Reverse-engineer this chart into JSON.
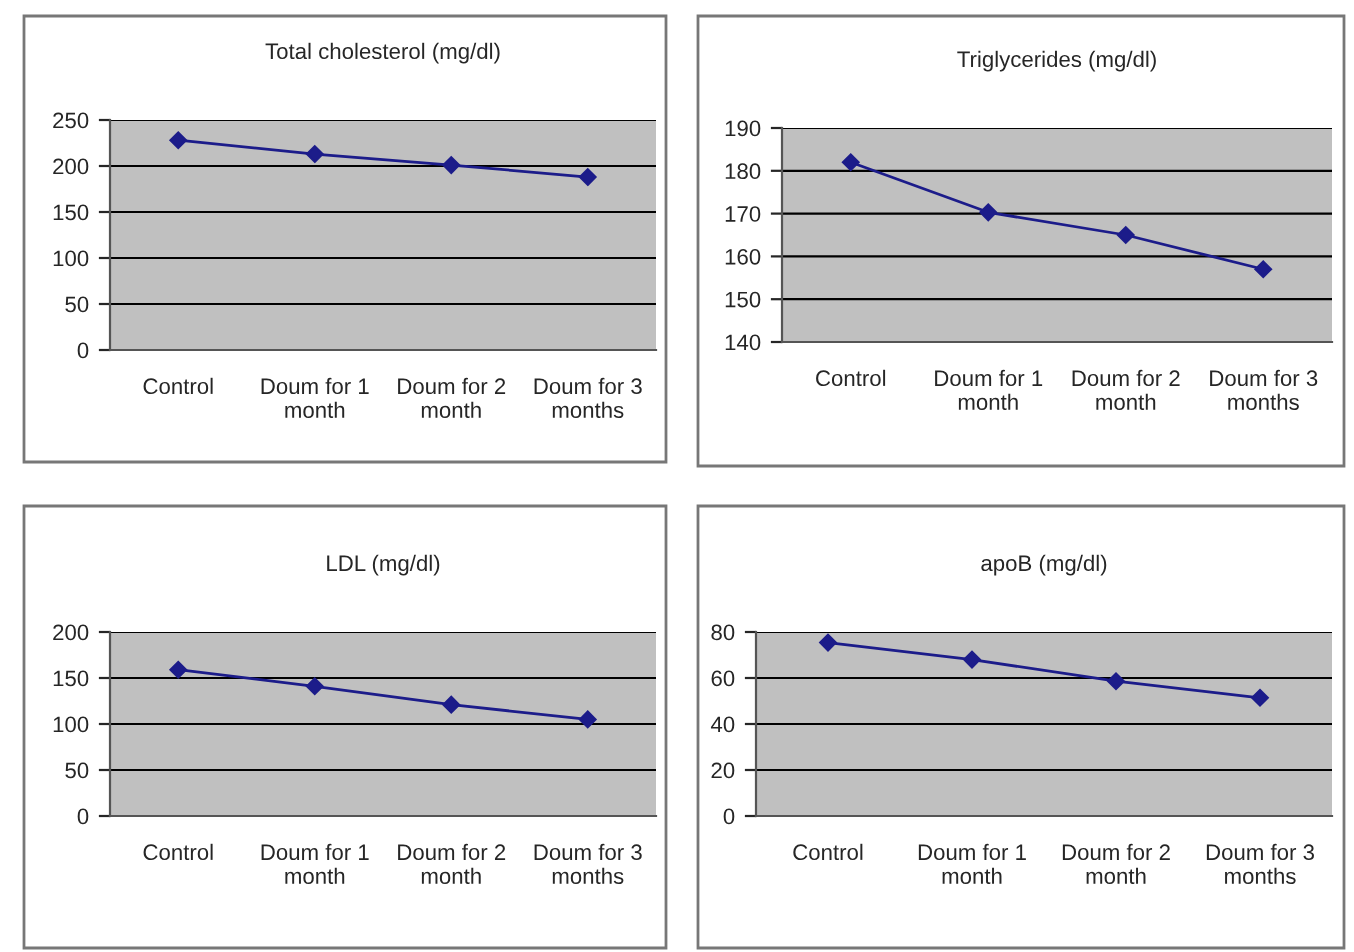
{
  "chart_data": [
    {
      "type": "line",
      "title": "Total cholesterol (mg/dl)",
      "categories": [
        "Control",
        "Doum for 1 month",
        "Doum for 2 month",
        "Doum for 3 months"
      ],
      "series": [
        {
          "color": "#1c1c8a",
          "values": [
            228,
            213,
            201,
            188
          ]
        }
      ],
      "ylim": [
        0,
        250
      ],
      "yticks": [
        0,
        50,
        100,
        150,
        200,
        250
      ],
      "grid": "y",
      "marker": "diamond",
      "line_style": "solid"
    },
    {
      "type": "line",
      "title": "Triglycerides (mg/dl)",
      "categories": [
        "Control",
        "Doum for 1 month",
        "Doum for 2 month",
        "Doum for 3 months"
      ],
      "series": [
        {
          "color": "#1c1c8a",
          "values": [
            182,
            170.3,
            165,
            157
          ]
        }
      ],
      "ylim": [
        140,
        190
      ],
      "yticks": [
        140,
        150,
        160,
        170,
        180,
        190
      ],
      "grid": "y",
      "marker": "diamond",
      "line_style": "solid"
    },
    {
      "type": "line",
      "title": "LDL (mg/dl)",
      "categories": [
        "Control",
        "Doum for 1 month",
        "Doum for 2 month",
        "Doum for 3 months"
      ],
      "series": [
        {
          "color": "#1c1c8a",
          "values": [
            159,
            141,
            121,
            105
          ]
        }
      ],
      "ylim": [
        0,
        200
      ],
      "yticks": [
        0,
        50,
        100,
        150,
        200
      ],
      "grid": "y",
      "marker": "diamond",
      "line_style": "solid"
    },
    {
      "type": "line",
      "title": "apoB (mg/dl)",
      "categories": [
        "Control",
        "Doum for 1 month",
        "Doum for 2 month",
        "Doum for 3 months"
      ],
      "series": [
        {
          "color": "#1c1c8a",
          "values": [
            75.4,
            68,
            58.6,
            51.4
          ]
        }
      ],
      "ylim": [
        0,
        80
      ],
      "yticks": [
        0,
        20,
        40,
        60,
        80
      ],
      "grid": "y",
      "marker": "diamond",
      "line_style": "solid"
    }
  ]
}
